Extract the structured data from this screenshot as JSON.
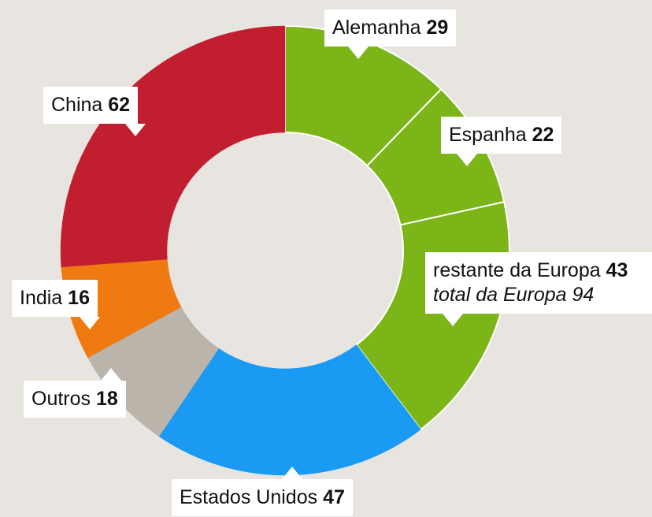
{
  "chart_data": {
    "type": "pie",
    "categories": [
      "Alemanha",
      "Espanha",
      "restante da Europa",
      "Estados Unidos",
      "Outros",
      "India",
      "China"
    ],
    "values": [
      29,
      22,
      43,
      47,
      18,
      16,
      62
    ],
    "colors": [
      "#7cb518",
      "#7cb518",
      "#7cb518",
      "#1a9af2",
      "#bab4ab",
      "#f07a12",
      "#c11f2f"
    ],
    "annotation": "total da Europa 94",
    "donut": true
  }
}
